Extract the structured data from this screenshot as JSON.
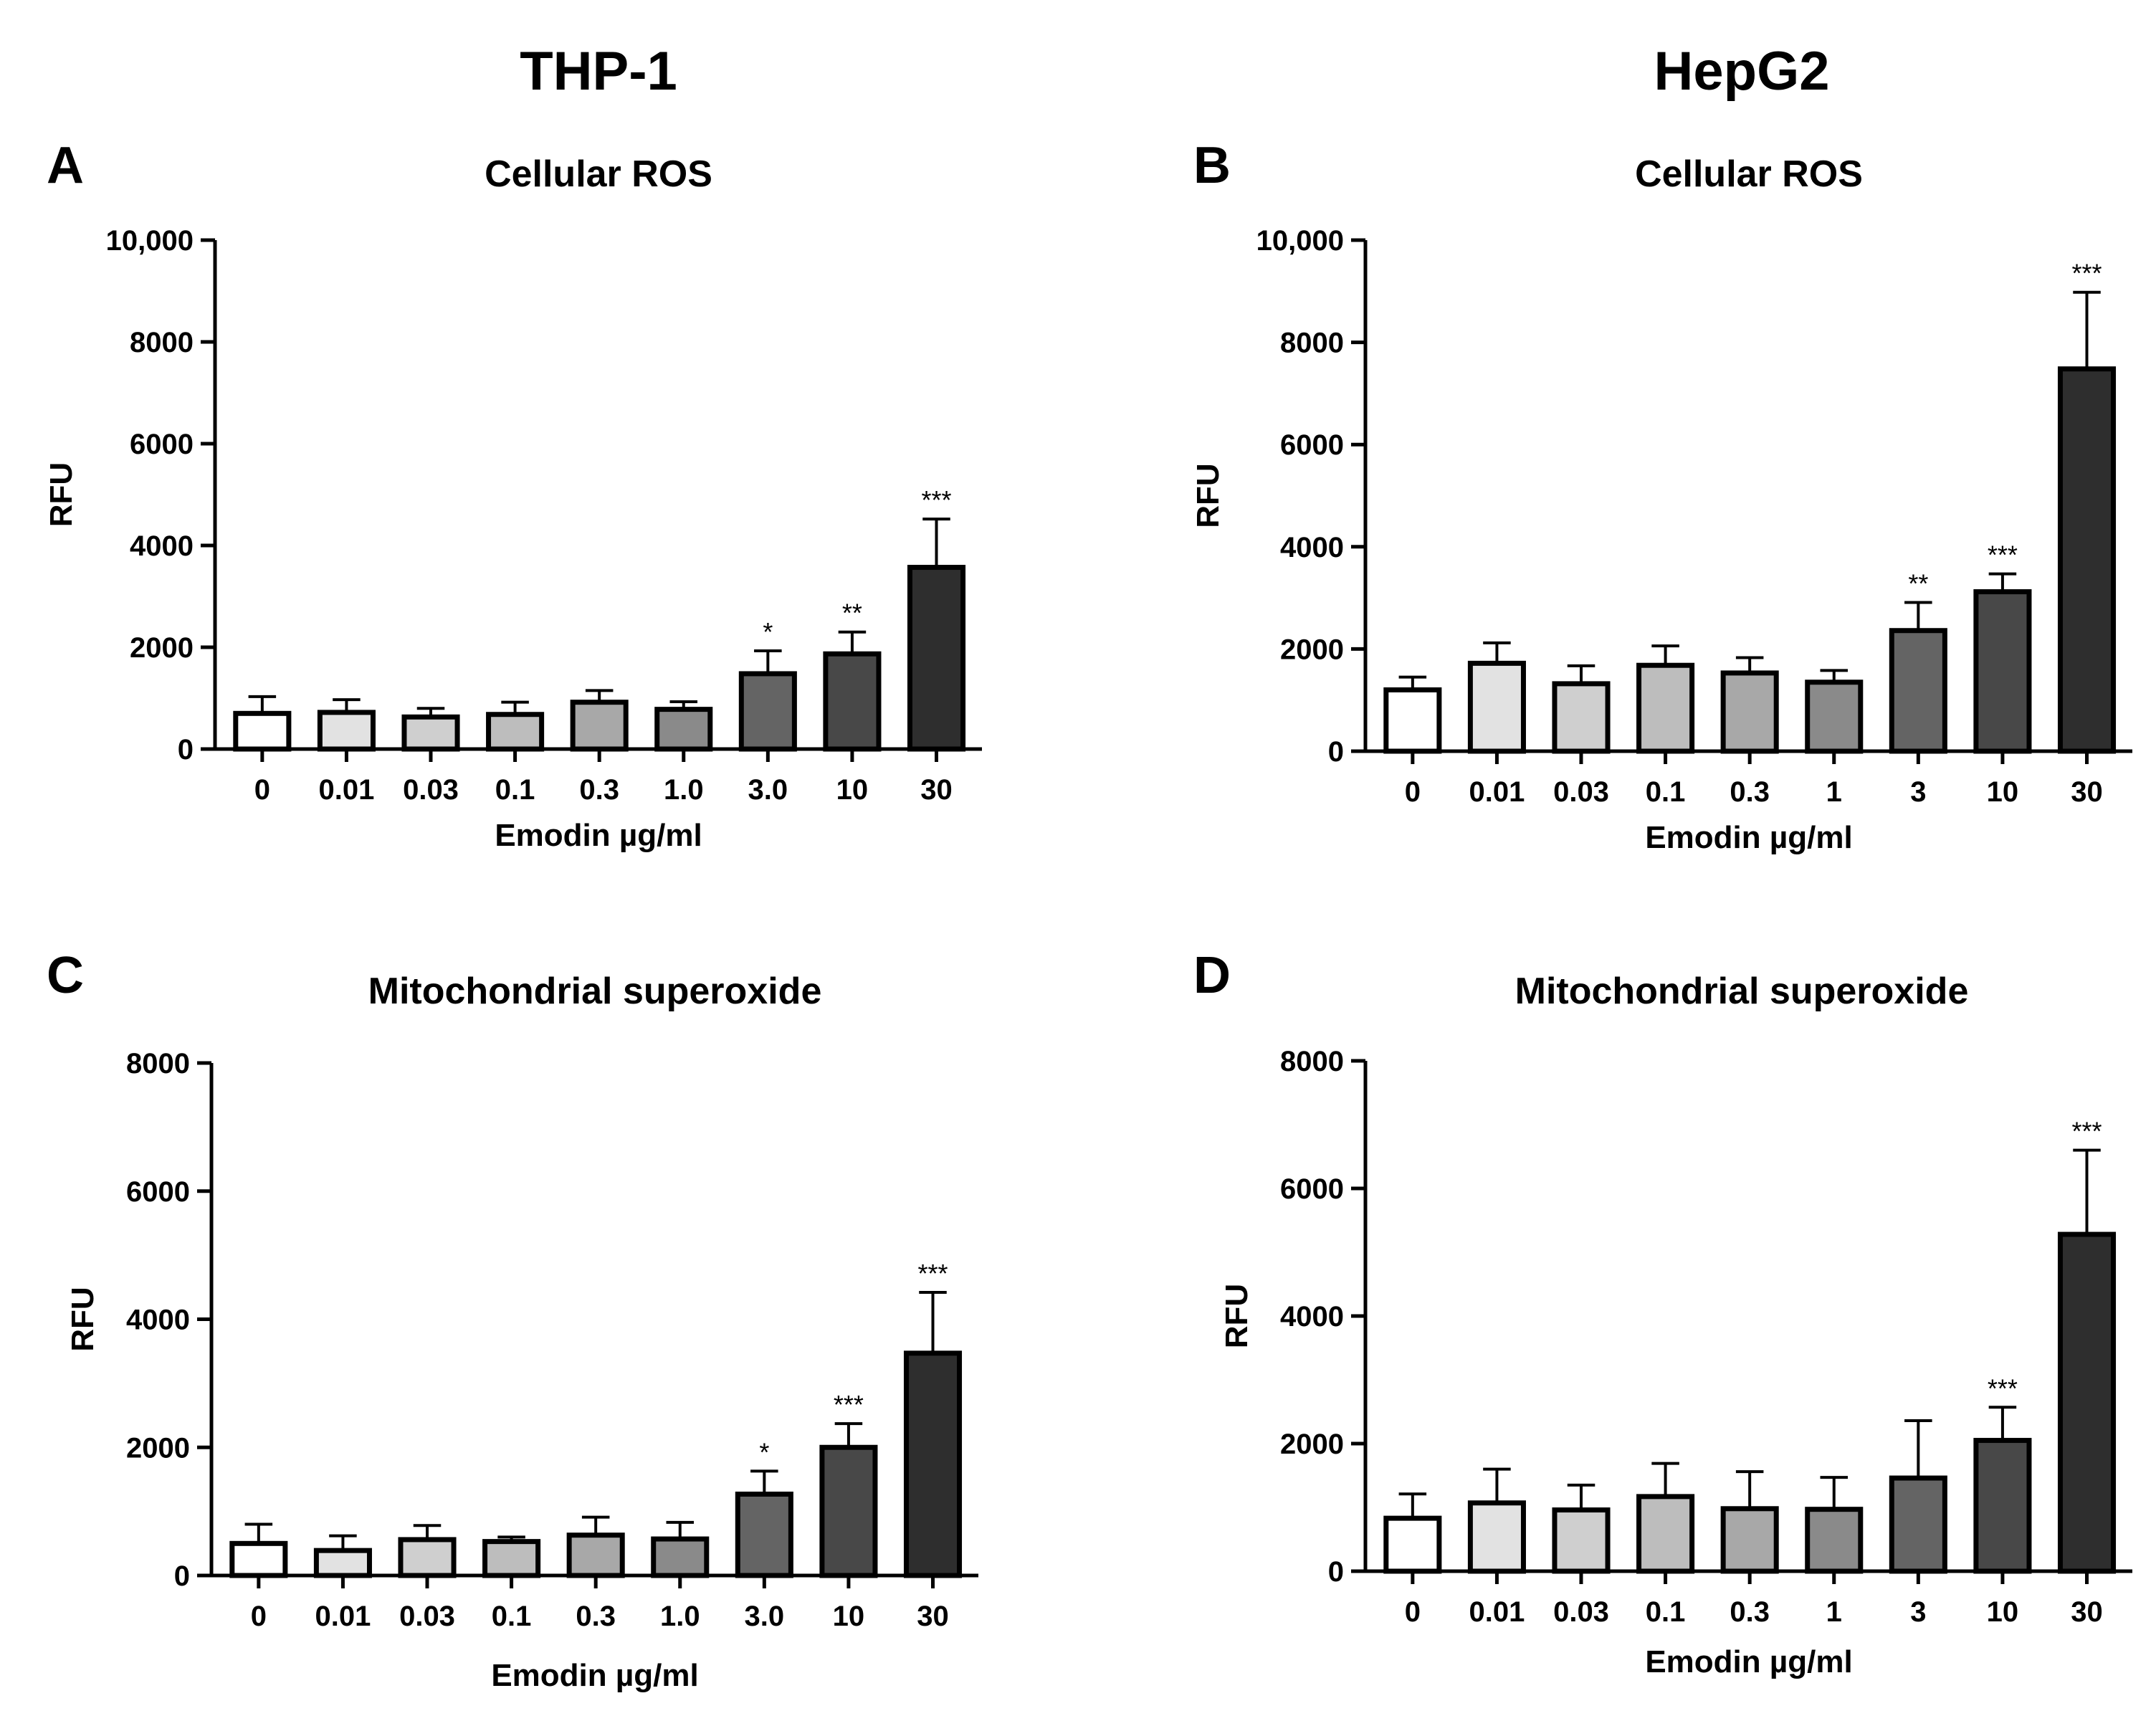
{
  "column_titles": [
    "THP-1",
    "HepG2"
  ],
  "chart_data": [
    {
      "panel": "A",
      "type": "bar",
      "title": "Cellular ROS",
      "xlabel": "Emodin µg/ml",
      "ylabel": "RFU",
      "ylim": [
        0,
        10000
      ],
      "yticks": [
        "0",
        "2000",
        "4000",
        "6000",
        "8000",
        "10,000"
      ],
      "categories": [
        "0",
        "0.01",
        "0.03",
        "0.1",
        "0.3",
        "1.0",
        "3.0",
        "10",
        "30"
      ],
      "values": [
        700,
        720,
        630,
        680,
        920,
        780,
        1480,
        1870,
        3570
      ],
      "errors": [
        330,
        250,
        170,
        240,
        230,
        150,
        450,
        430,
        950
      ],
      "significance": [
        "",
        "",
        "",
        "",
        "",
        "",
        "*",
        "**",
        "***"
      ],
      "bar_colors": [
        "#ffffff",
        "#e2e2e2",
        "#cfcfcf",
        "#bdbdbd",
        "#a8a8a8",
        "#8a8a8a",
        "#646464",
        "#484848",
        "#2e2e2e"
      ]
    },
    {
      "panel": "B",
      "type": "bar",
      "title": "Cellular ROS",
      "xlabel": "Emodin µg/ml",
      "ylabel": "RFU",
      "ylim": [
        0,
        10000
      ],
      "yticks": [
        "0",
        "2000",
        "4000",
        "6000",
        "8000",
        "10,000"
      ],
      "categories": [
        "0",
        "0.01",
        "0.03",
        "0.1",
        "0.3",
        "1",
        "3",
        "10",
        "30"
      ],
      "values": [
        1200,
        1720,
        1320,
        1680,
        1530,
        1350,
        2360,
        3120,
        7480
      ],
      "errors": [
        250,
        400,
        350,
        380,
        300,
        230,
        550,
        350,
        1500
      ],
      "significance": [
        "",
        "",
        "",
        "",
        "",
        "",
        "**",
        "***",
        "***"
      ],
      "bar_colors": [
        "#ffffff",
        "#e2e2e2",
        "#cfcfcf",
        "#bdbdbd",
        "#a8a8a8",
        "#8a8a8a",
        "#646464",
        "#484848",
        "#2e2e2e"
      ]
    },
    {
      "panel": "C",
      "type": "bar",
      "title": "Mitochondrial superoxide",
      "xlabel": "Emodin µg/ml",
      "ylabel": "RFU",
      "ylim": [
        0,
        8000
      ],
      "yticks": [
        "0",
        "2000",
        "4000",
        "6000",
        "8000"
      ],
      "categories": [
        "0",
        "0.01",
        "0.03",
        "0.1",
        "0.3",
        "1.0",
        "3.0",
        "10",
        "30"
      ],
      "values": [
        500,
        390,
        560,
        530,
        630,
        570,
        1270,
        2000,
        3470
      ],
      "errors": [
        300,
        230,
        220,
        70,
        280,
        260,
        360,
        370,
        950
      ],
      "significance": [
        "",
        "",
        "",
        "",
        "",
        "",
        "*",
        "***",
        "***"
      ],
      "bar_colors": [
        "#ffffff",
        "#e2e2e2",
        "#cfcfcf",
        "#bdbdbd",
        "#a8a8a8",
        "#8a8a8a",
        "#646464",
        "#484848",
        "#2e2e2e"
      ]
    },
    {
      "panel": "D",
      "type": "bar",
      "title": "Mitochondrial superoxide",
      "xlabel": "Emodin µg/ml",
      "ylabel": "RFU",
      "ylim": [
        0,
        8000
      ],
      "yticks": [
        "0",
        "2000",
        "4000",
        "6000",
        "8000"
      ],
      "categories": [
        "0",
        "0.01",
        "0.03",
        "0.1",
        "0.3",
        "1",
        "3",
        "10",
        "30"
      ],
      "values": [
        830,
        1070,
        960,
        1170,
        980,
        970,
        1460,
        2050,
        5280
      ],
      "errors": [
        380,
        530,
        390,
        520,
        580,
        500,
        900,
        520,
        1320
      ],
      "significance": [
        "",
        "",
        "",
        "",
        "",
        "",
        "",
        "***",
        "***"
      ],
      "bar_colors": [
        "#ffffff",
        "#e2e2e2",
        "#cfcfcf",
        "#bdbdbd",
        "#a8a8a8",
        "#8a8a8a",
        "#646464",
        "#484848",
        "#2e2e2e"
      ]
    }
  ]
}
